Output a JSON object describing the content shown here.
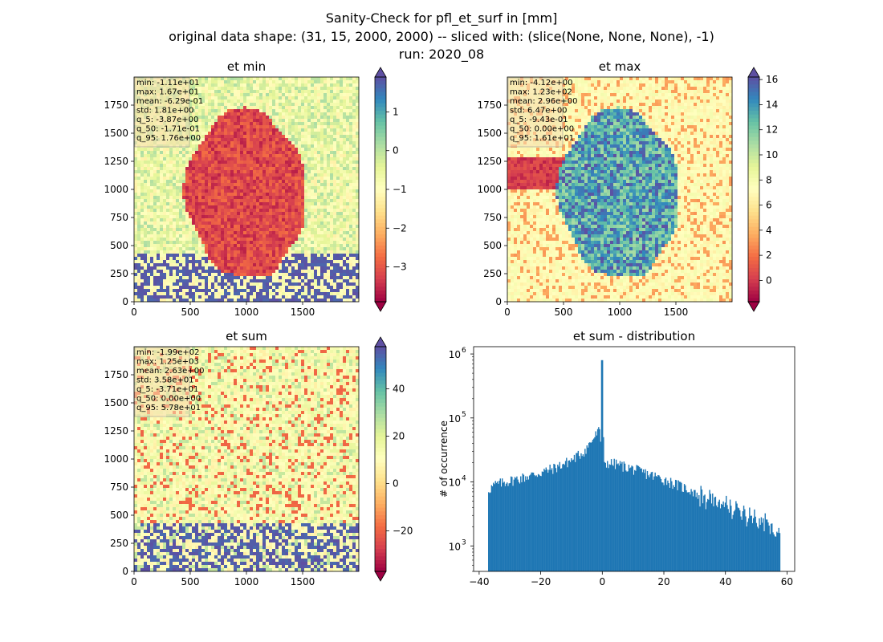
{
  "figure": {
    "title_lines": [
      "Sanity-Check for pfl_et_surf in [mm]",
      "original data shape: (31, 15, 2000, 2000) -- sliced with: (slice(None, None, None), -1)",
      "run: 2020_08"
    ]
  },
  "colormap": {
    "name": "Spectral",
    "stops": [
      "#9e0142",
      "#d53e4f",
      "#f46d43",
      "#fdae61",
      "#fee08b",
      "#ffffbf",
      "#e6f598",
      "#abdda4",
      "#66c2a5",
      "#3288bd",
      "#5e4fa2"
    ]
  },
  "chart_data": [
    {
      "type": "heatmap",
      "title": "et min",
      "xlim": [
        0,
        2000
      ],
      "ylim": [
        0,
        2000
      ],
      "xticks": [
        "0",
        "500",
        "1000",
        "1500"
      ],
      "yticks": [
        "0",
        "250",
        "500",
        "750",
        "1000",
        "1250",
        "1500",
        "1750"
      ],
      "colorbar": {
        "range": [
          -3.9,
          1.9
        ],
        "ticks": [
          "1",
          "0",
          "−1",
          "−2",
          "−3"
        ],
        "extend": "both"
      },
      "stats_box": [
        "min: -1.11e+01",
        "max: 1.67e+01",
        "mean: -6.29e-01",
        "std: 1.81e+00",
        "q_5: -3.87e+00",
        "q_50: -1.71e-01",
        "q_95: 1.76e+00"
      ]
    },
    {
      "type": "heatmap",
      "title": "et max",
      "xlim": [
        0,
        2000
      ],
      "ylim": [
        0,
        2000
      ],
      "xticks": [
        "0",
        "500",
        "1000",
        "1500"
      ],
      "yticks": [
        "0",
        "250",
        "500",
        "750",
        "1000",
        "1250",
        "1500",
        "1750"
      ],
      "colorbar": {
        "range": [
          -1.7,
          16.2
        ],
        "ticks": [
          "16",
          "14",
          "12",
          "10",
          "8",
          "6",
          "4",
          "2",
          "0"
        ],
        "extend": "both"
      },
      "stats_box": [
        "min: -4.12e+00",
        "max: 1.23e+02",
        "mean: 2.96e+00",
        "std: 6.47e+00",
        "q_5: -9.43e-01",
        "q_50: 0.00e+00",
        "q_95: 1.61e+01"
      ]
    },
    {
      "type": "heatmap",
      "title": "et sum",
      "xlim": [
        0,
        2000
      ],
      "ylim": [
        0,
        2000
      ],
      "xticks": [
        "0",
        "500",
        "1000",
        "1500"
      ],
      "yticks": [
        "0",
        "250",
        "500",
        "750",
        "1000",
        "1250",
        "1500",
        "1750"
      ],
      "colorbar": {
        "range": [
          -37.1,
          57.8
        ],
        "ticks": [
          "40",
          "20",
          "0",
          "−20"
        ],
        "extend": "both"
      },
      "stats_box": [
        "min: -1.99e+02",
        "max: 1.25e+03",
        "mean: 2.63e+00",
        "std: 3.58e+01",
        "q_5: -3.71e+01",
        "q_50: 0.00e+00",
        "q_95: 5.78e+01"
      ]
    },
    {
      "type": "bar",
      "title": "et sum - distribution",
      "ylabel": "# of occurrence",
      "yscale": "log",
      "xlim": [
        -41.8,
        62.5
      ],
      "ylim": [
        400,
        1300000
      ],
      "bar_color": "#1f77b4",
      "xticks": [
        {
          "value": -40,
          "label": "−40"
        },
        {
          "value": -20,
          "label": "−20"
        },
        {
          "value": 0,
          "label": "0"
        },
        {
          "value": 20,
          "label": "20"
        },
        {
          "value": 40,
          "label": "40"
        },
        {
          "value": 60,
          "label": "60"
        }
      ],
      "yticks": [
        {
          "value": 1000,
          "label": "10",
          "exp": "3"
        },
        {
          "value": 10000,
          "label": "10",
          "exp": "4"
        },
        {
          "value": 100000,
          "label": "10",
          "exp": "5"
        },
        {
          "value": 1000000,
          "label": "10",
          "exp": "6"
        }
      ],
      "bin_range": [
        -37.1,
        57.8
      ],
      "profile_x": [
        -37.1,
        -35,
        -30,
        -25,
        -20,
        -15,
        -10,
        -6,
        -4,
        -2,
        -1,
        -0.5,
        0,
        0.5,
        1,
        5,
        10,
        20,
        30,
        40,
        50,
        57.8
      ],
      "profile_y": [
        7500,
        9000,
        10500,
        12000,
        14000,
        17000,
        22000,
        30000,
        40000,
        55000,
        65000,
        40000,
        800000,
        22000,
        20000,
        19000,
        16000,
        11000,
        7000,
        4500,
        3000,
        2000
      ]
    }
  ]
}
